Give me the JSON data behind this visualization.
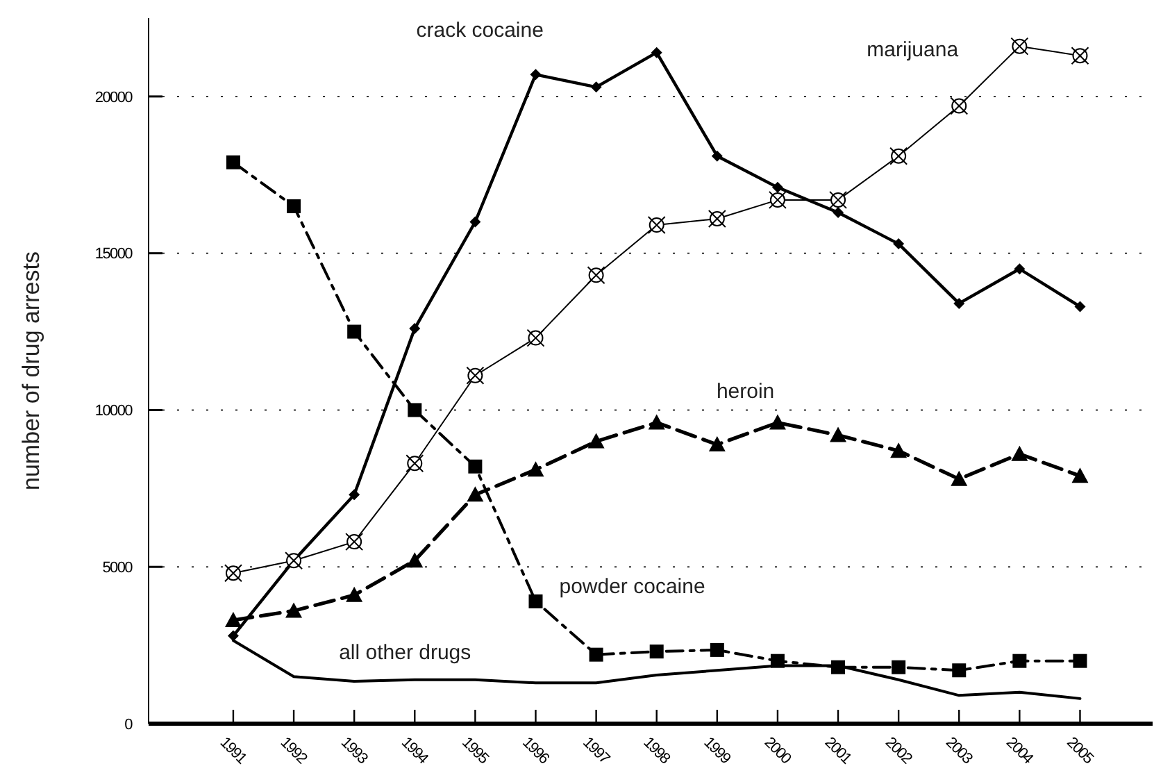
{
  "chart_data": {
    "type": "line",
    "ylabel": "number of drug arrests",
    "x": [
      1991,
      1992,
      1993,
      1994,
      1995,
      1996,
      1997,
      1998,
      1999,
      2000,
      2001,
      2002,
      2003,
      2004,
      2005
    ],
    "xlim": [
      1989.6,
      2006.2
    ],
    "xticks": [
      1991,
      1992,
      1993,
      1994,
      1995,
      1996,
      1997,
      1998,
      1999,
      2000,
      2001,
      2002,
      2003,
      2004,
      2005
    ],
    "ylim": [
      0,
      22500
    ],
    "yticks": [
      0,
      5000,
      10000,
      15000,
      20000
    ],
    "grid": "y",
    "legend": false,
    "series": [
      {
        "name": "crack cocaine",
        "color": "#000000",
        "marker": "diamond",
        "line_style": "solid",
        "values": [
          2800,
          5200,
          7300,
          12600,
          16000,
          20700,
          20300,
          21400,
          18100,
          17100,
          16300,
          15300,
          13400,
          14500,
          13300
        ]
      },
      {
        "name": "marijuana",
        "color": "#000000",
        "marker": "circle",
        "line_style": "solid",
        "values": [
          4800,
          5200,
          5800,
          8300,
          11100,
          12300,
          14300,
          15900,
          16100,
          16700,
          16700,
          18100,
          19700,
          21600,
          21300
        ]
      },
      {
        "name": "heroin",
        "color": "#000000",
        "marker": "triangle",
        "line_style": "dashed",
        "values": [
          3300,
          3600,
          4100,
          5200,
          7300,
          8100,
          9000,
          9600,
          8900,
          9600,
          9200,
          8700,
          7800,
          8600,
          7900
        ]
      },
      {
        "name": "powder cocaine",
        "color": "#000000",
        "marker": "square",
        "line_style": "dashdot",
        "values": [
          17900,
          16500,
          12500,
          10000,
          8200,
          3900,
          2200,
          2300,
          2350,
          2000,
          1800,
          1800,
          1700,
          2000,
          2000
        ]
      },
      {
        "name": "all other drugs",
        "color": "#000000",
        "marker": "none",
        "line_style": "solid",
        "values": [
          2650,
          1500,
          1350,
          1400,
          1400,
          1300,
          1300,
          1550,
          1700,
          1850,
          1850,
          1400,
          900,
          1000,
          800
        ]
      }
    ]
  }
}
